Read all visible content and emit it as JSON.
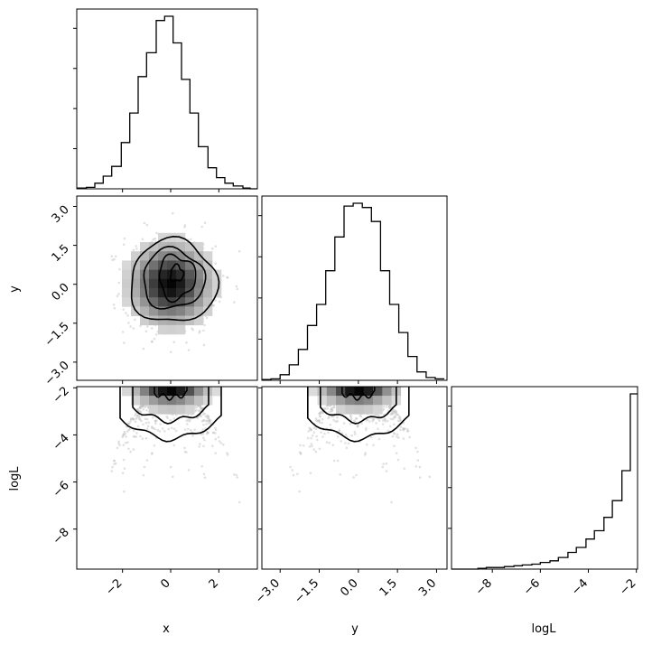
{
  "chart_data": {
    "type": "corner",
    "variables": [
      "x",
      "y",
      "logL"
    ],
    "axis_labels": {
      "x": "x",
      "y": "y",
      "logL": "logL"
    },
    "ranges": {
      "x": [
        -3.9,
        3.6
      ],
      "y": [
        -3.7,
        3.4
      ],
      "logL": [
        -9.7,
        -1.95
      ]
    },
    "ticks": {
      "x": {
        "values": [
          -2,
          0,
          2
        ],
        "labels": [
          "−2",
          "0",
          "2"
        ]
      },
      "y": {
        "values": [
          -3.0,
          -1.5,
          0.0,
          1.5,
          3.0
        ],
        "labels": [
          "−3.0",
          "−1.5",
          "0.0",
          "1.5",
          "3.0"
        ]
      },
      "logL": {
        "values": [
          -8,
          -6,
          -4,
          -2
        ],
        "labels": [
          "−8",
          "−6",
          "−4",
          "−2"
        ]
      }
    },
    "histograms": {
      "x": {
        "edges": [
          -3.9,
          -3.5,
          -3.15,
          -2.8,
          -2.45,
          -2.05,
          -1.7,
          -1.35,
          -1.0,
          -0.6,
          -0.25,
          0.1,
          0.45,
          0.8,
          1.15,
          1.55,
          1.9,
          2.25,
          2.6,
          3.0,
          3.3,
          3.6
        ],
        "counts": [
          1,
          2,
          8,
          18,
          32,
          66,
          108,
          160,
          194,
          240,
          246,
          208,
          156,
          108,
          60,
          30,
          16,
          8,
          4,
          1,
          0
        ]
      },
      "y": {
        "edges": [
          -3.7,
          -3.35,
          -3.0,
          -2.65,
          -2.3,
          -1.95,
          -1.6,
          -1.25,
          -0.9,
          -0.55,
          -0.2,
          0.15,
          0.5,
          0.85,
          1.2,
          1.55,
          1.9,
          2.25,
          2.6,
          2.95,
          3.3
        ],
        "counts": [
          1,
          2,
          8,
          22,
          44,
          78,
          108,
          156,
          204,
          248,
          252,
          246,
          226,
          156,
          108,
          68,
          34,
          12,
          4,
          2
        ]
      },
      "logL": {
        "edges": [
          -9.7,
          -9.35,
          -9.0,
          -8.6,
          -8.25,
          -7.85,
          -7.5,
          -7.1,
          -6.75,
          -6.35,
          -6.0,
          -5.6,
          -5.25,
          -4.85,
          -4.5,
          -4.1,
          -3.75,
          -3.35,
          -3.0,
          -2.6,
          -2.25,
          -1.95
        ],
        "counts": [
          0,
          0,
          0,
          1,
          2,
          2,
          3,
          4,
          5,
          6,
          8,
          10,
          14,
          20,
          26,
          36,
          46,
          62,
          82,
          118,
          210
        ]
      }
    },
    "contour_panels": [
      {
        "x": "x",
        "y": "y",
        "levels": 4
      },
      {
        "x": "x",
        "y": "logL",
        "levels": 3
      },
      {
        "x": "y",
        "y": "logL",
        "levels": 3
      }
    ]
  }
}
